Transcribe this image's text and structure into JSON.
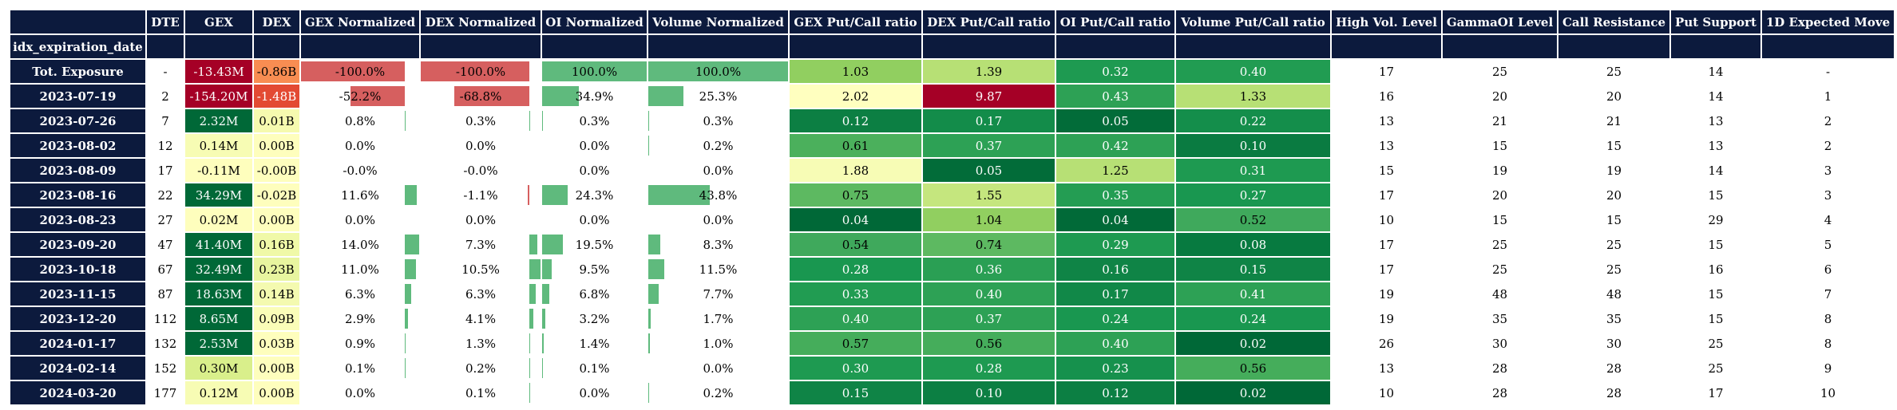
{
  "table": {
    "index_name": "idx_expiration_date",
    "index": [
      "Tot. Exposure",
      "2023-07-19",
      "2023-07-26",
      "2023-08-02",
      "2023-08-09",
      "2023-08-16",
      "2023-08-23",
      "2023-09-20",
      "2023-10-18",
      "2023-11-15",
      "2023-12-20",
      "2024-01-17",
      "2024-02-14",
      "2024-03-20"
    ],
    "bar_colors": {
      "negative": "#d65f5f",
      "positive": "#5fba7d"
    },
    "columns": [
      {
        "name": "DTE",
        "cells": [
          "-",
          2,
          7,
          12,
          17,
          22,
          27,
          47,
          67,
          87,
          112,
          132,
          152,
          177
        ]
      },
      {
        "name": "GEX",
        "cells": [
          "-13.43M",
          "-154.20M",
          "2.32M",
          "0.14M",
          "-0.11M",
          "34.29M",
          "0.02M",
          "41.40M",
          "32.49M",
          "18.63M",
          "8.65M",
          "2.53M",
          "0.30M",
          "0.12M"
        ],
        "colors": [
          "#a50026",
          "#a50026",
          "#006837",
          "#f7fcb4",
          "#fefebd",
          "#006837",
          "#fefebd",
          "#006837",
          "#006837",
          "#006837",
          "#006837",
          "#006837",
          "#d9ef8b",
          "#f7fcb4"
        ]
      },
      {
        "name": "DEX",
        "cells": [
          "-0.86B",
          "-1.48B",
          "0.01B",
          "0.00B",
          "-0.00B",
          "-0.02B",
          "0.00B",
          "0.16B",
          "0.23B",
          "0.14B",
          "0.09B",
          "0.03B",
          "0.00B",
          "0.00B"
        ],
        "colors": [
          "#f88d52",
          "#e34a33",
          "#f6faaf",
          "#fefebd",
          "#fefebd",
          "#fefebd",
          "#fefebd",
          "#f0f9a8",
          "#e8f59f",
          "#f4fab0",
          "#fafdb8",
          "#fefebd",
          "#fefebd",
          "#fefebd"
        ]
      },
      {
        "name": "GEX Normalized",
        "values": [
          -100.0,
          -52.2,
          0.8,
          0.0,
          -0.0,
          11.6,
          0.0,
          14.0,
          11.0,
          6.3,
          2.9,
          0.9,
          0.1,
          0.0
        ],
        "value_labels": [
          "-100.0%",
          "-52.2%",
          "0.8%",
          "0.0%",
          "-0.0%",
          "11.6%",
          "0.0%",
          "14.0%",
          "11.0%",
          "6.3%",
          "2.9%",
          "0.9%",
          "0.1%",
          "0.0%"
        ]
      },
      {
        "name": "DEX Normalized",
        "values": [
          -100.0,
          -68.8,
          0.3,
          0.0,
          -0.0,
          -1.1,
          0.0,
          7.3,
          10.5,
          6.3,
          4.1,
          1.3,
          0.2,
          0.1
        ],
        "value_labels": [
          "-100.0%",
          "-68.8%",
          "0.3%",
          "0.0%",
          "-0.0%",
          "-1.1%",
          "0.0%",
          "7.3%",
          "10.5%",
          "6.3%",
          "4.1%",
          "1.3%",
          "0.2%",
          "0.1%"
        ]
      },
      {
        "name": "OI Normalized",
        "values": [
          100.0,
          34.9,
          0.3,
          0.0,
          0.0,
          24.3,
          0.0,
          19.5,
          9.5,
          6.8,
          3.2,
          1.4,
          0.1,
          0.0
        ],
        "value_labels": [
          "100.0%",
          "34.9%",
          "0.3%",
          "0.0%",
          "0.0%",
          "24.3%",
          "0.0%",
          "19.5%",
          "9.5%",
          "6.8%",
          "3.2%",
          "1.4%",
          "0.1%",
          "0.0%"
        ]
      },
      {
        "name": "Volume Normalized",
        "values": [
          100.0,
          25.3,
          0.3,
          0.2,
          0.0,
          43.8,
          0.0,
          8.3,
          11.5,
          7.7,
          1.7,
          1.0,
          0.0,
          0.2
        ],
        "value_labels": [
          "100.0%",
          "25.3%",
          "0.3%",
          "0.2%",
          "0.0%",
          "43.8%",
          "0.0%",
          "8.3%",
          "11.5%",
          "7.7%",
          "1.7%",
          "1.0%",
          "0.0%",
          "0.2%"
        ]
      },
      {
        "name": "GEX Put/Call ratio",
        "cells": [
          "1.03",
          "2.02",
          "0.12",
          "0.61",
          "1.88",
          "0.75",
          "0.04",
          "0.54",
          "0.28",
          "0.33",
          "0.40",
          "0.57",
          "0.30",
          "0.15"
        ],
        "colors": [
          "#91cf60",
          "#ffffbf",
          "#0c7f43",
          "#4bb05c",
          "#f7fcb5",
          "#5db961",
          "#006837",
          "#3fa95c",
          "#199750",
          "#219c52",
          "#2da155",
          "#45ad5b",
          "#1e9a51",
          "#0f8446"
        ]
      },
      {
        "name": "DEX Put/Call ratio",
        "cells": [
          "1.39",
          "9.87",
          "0.17",
          "0.37",
          "0.05",
          "1.55",
          "1.04",
          "0.74",
          "0.36",
          "0.40",
          "0.37",
          "0.56",
          "0.28",
          "0.10"
        ],
        "colors": [
          "#b7e075",
          "#a50026",
          "#138c4a",
          "#2da155",
          "#026c39",
          "#c5e67e",
          "#91cf60",
          "#5db961",
          "#2a9f54",
          "#2da155",
          "#2da155",
          "#45ad5b",
          "#1e9a51",
          "#0c7f43"
        ]
      },
      {
        "name": "OI Put/Call ratio",
        "cells": [
          "0.32",
          "0.43",
          "0.05",
          "0.42",
          "1.25",
          "0.35",
          "0.04",
          "0.29",
          "0.16",
          "0.17",
          "0.24",
          "0.40",
          "0.23",
          "0.12"
        ],
        "colors": [
          "#1e9a51",
          "#2da155",
          "#026c39",
          "#2da155",
          "#b7e075",
          "#249d53",
          "#016a38",
          "#1e9a51",
          "#0f8446",
          "#118848",
          "#199750",
          "#2da155",
          "#16914d",
          "#0c7f43"
        ]
      },
      {
        "name": "Volume Put/Call ratio",
        "cells": [
          "0.40",
          "1.33",
          "0.22",
          "0.10",
          "0.31",
          "0.27",
          "0.52",
          "0.08",
          "0.15",
          "0.41",
          "0.24",
          "0.02",
          "0.56",
          "0.02"
        ],
        "colors": [
          "#219c52",
          "#b7e075",
          "#148e4b",
          "#0a7b41",
          "#1e9a51",
          "#199750",
          "#3fa95c",
          "#077a40",
          "#0f8446",
          "#2da155",
          "#199750",
          "#006837",
          "#45ad5b",
          "#006837"
        ]
      },
      {
        "name": "High Vol. Level",
        "cells": [
          17,
          16,
          13,
          13,
          15,
          17,
          10,
          17,
          17,
          19,
          19,
          26,
          13,
          10
        ]
      },
      {
        "name": "GammaOI Level",
        "cells": [
          25,
          20,
          21,
          15,
          19,
          20,
          15,
          25,
          25,
          48,
          35,
          30,
          28,
          28
        ]
      },
      {
        "name": "Call Resistance",
        "cells": [
          25,
          20,
          21,
          15,
          19,
          20,
          15,
          25,
          25,
          48,
          35,
          30,
          28,
          28
        ]
      },
      {
        "name": "Put Support",
        "cells": [
          14,
          14,
          13,
          13,
          14,
          15,
          29,
          15,
          16,
          15,
          15,
          25,
          25,
          17
        ]
      },
      {
        "name": "1D Expected Move",
        "cells": [
          "-",
          1,
          2,
          2,
          3,
          3,
          4,
          5,
          6,
          7,
          8,
          8,
          9,
          10
        ]
      }
    ]
  }
}
